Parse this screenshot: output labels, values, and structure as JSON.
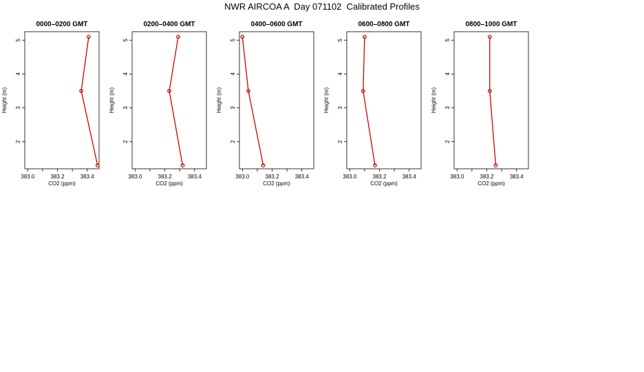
{
  "figure_title": "NWR AIRCOA A  Day 071102  Calibrated Profiles",
  "colors": {
    "line": "#cc0000",
    "marker": "#cc0000",
    "axis": "#000000"
  },
  "chart_data": [
    {
      "type": "line",
      "title": "0000–0200 GMT",
      "xlabel": "CO2 (ppm)",
      "ylabel": "Height (m)",
      "xlim": [
        382.98,
        383.48
      ],
      "ylim": [
        1.2,
        5.25
      ],
      "xticks": [
        383.0,
        383.2,
        383.4
      ],
      "xtick_labels": [
        "383.0",
        "383.2",
        "383.4"
      ],
      "yticks": [
        2,
        3,
        4,
        5
      ],
      "ytick_labels": [
        "2",
        "3",
        "4",
        "5"
      ],
      "series": [
        {
          "x": [
            383.41,
            383.36,
            383.47
          ],
          "y": [
            5.1,
            3.5,
            1.3
          ]
        }
      ]
    },
    {
      "type": "line",
      "title": "0200–0400 GMT",
      "xlabel": "CO2 (ppm)",
      "ylabel": "Height (m)",
      "xlim": [
        382.98,
        383.48
      ],
      "ylim": [
        1.2,
        5.25
      ],
      "xticks": [
        383.0,
        383.2,
        383.4
      ],
      "xtick_labels": [
        "383.0",
        "383.2",
        "383.4"
      ],
      "yticks": [
        2,
        3,
        4,
        5
      ],
      "ytick_labels": [
        "2",
        "3",
        "4",
        "5"
      ],
      "series": [
        {
          "x": [
            383.29,
            383.23,
            383.32
          ],
          "y": [
            5.1,
            3.5,
            1.3
          ]
        }
      ]
    },
    {
      "type": "line",
      "title": "0400–0600 GMT",
      "xlabel": "CO2 (ppm)",
      "ylabel": "Height (m)",
      "xlim": [
        382.98,
        383.48
      ],
      "ylim": [
        1.2,
        5.25
      ],
      "xticks": [
        383.0,
        383.2,
        383.4
      ],
      "xtick_labels": [
        "383.0",
        "383.2",
        "383.4"
      ],
      "yticks": [
        2,
        3,
        4,
        5
      ],
      "ytick_labels": [
        "2",
        "3",
        "4",
        "5"
      ],
      "series": [
        {
          "x": [
            383.0,
            383.04,
            383.14
          ],
          "y": [
            5.1,
            3.5,
            1.3
          ]
        }
      ]
    },
    {
      "type": "line",
      "title": "0600–0800 GMT",
      "xlabel": "CO2 (ppm)",
      "ylabel": "Height (m)",
      "xlim": [
        382.98,
        383.48
      ],
      "ylim": [
        1.2,
        5.25
      ],
      "xticks": [
        383.0,
        383.2,
        383.4
      ],
      "xtick_labels": [
        "383.0",
        "383.2",
        "383.4"
      ],
      "yticks": [
        2,
        3,
        4,
        5
      ],
      "ytick_labels": [
        "2",
        "3",
        "4",
        "5"
      ],
      "series": [
        {
          "x": [
            383.1,
            383.09,
            383.17
          ],
          "y": [
            5.1,
            3.5,
            1.3
          ]
        }
      ]
    },
    {
      "type": "line",
      "title": "0800–1000 GMT",
      "xlabel": "CO2 (ppm)",
      "ylabel": "Height (m)",
      "xlim": [
        382.98,
        383.48
      ],
      "ylim": [
        1.2,
        5.25
      ],
      "xticks": [
        383.0,
        383.2,
        383.4
      ],
      "xtick_labels": [
        "383.0",
        "383.2",
        "383.4"
      ],
      "yticks": [
        2,
        3,
        4,
        5
      ],
      "ytick_labels": [
        "2",
        "3",
        "4",
        "5"
      ],
      "series": [
        {
          "x": [
            383.22,
            383.22,
            383.26
          ],
          "y": [
            5.1,
            3.5,
            1.3
          ]
        }
      ]
    }
  ]
}
